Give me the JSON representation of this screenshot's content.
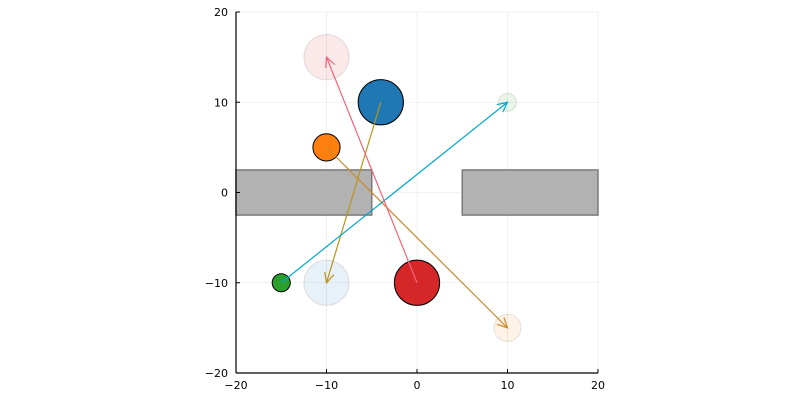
{
  "chart_data": {
    "type": "scatter",
    "title": "",
    "xlabel": "",
    "ylabel": "",
    "xlim": [
      -20,
      20
    ],
    "ylim": [
      -20,
      20
    ],
    "grid": true,
    "legend": "none",
    "x_ticks": [
      "−20",
      "−10",
      "0",
      "10",
      "20"
    ],
    "y_ticks": [
      "−20",
      "−10",
      "0",
      "10",
      "20"
    ],
    "x_tick_values": [
      -20,
      -10,
      0,
      10,
      20
    ],
    "y_tick_values": [
      -20,
      -10,
      0,
      10,
      20
    ],
    "obstacles": [
      {
        "x": [
          -20,
          -5
        ],
        "y": [
          -2.5,
          2.5
        ],
        "color": "#b2b2b2"
      },
      {
        "x": [
          5,
          20
        ],
        "y": [
          -2.5,
          2.5
        ],
        "color": "#b2b2b2"
      }
    ],
    "agents": [
      {
        "start": [
          -4,
          10
        ],
        "goal": [
          -10,
          -10
        ],
        "radius": 2.5,
        "color": "#1f77b4",
        "arrow_color": "#b8941a"
      },
      {
        "start": [
          -10,
          5
        ],
        "goal": [
          10,
          -15
        ],
        "radius": 1.5,
        "color": "#ff7f0e",
        "arrow_color": "#c8892a"
      },
      {
        "start": [
          -15,
          -10
        ],
        "goal": [
          10,
          10
        ],
        "radius": 1.0,
        "color": "#2ca02c",
        "arrow_color": "#00a9cd"
      },
      {
        "start": [
          0,
          -10
        ],
        "goal": [
          -10,
          15
        ],
        "radius": 2.5,
        "color": "#d62728",
        "arrow_color": "#f0647a"
      }
    ]
  }
}
